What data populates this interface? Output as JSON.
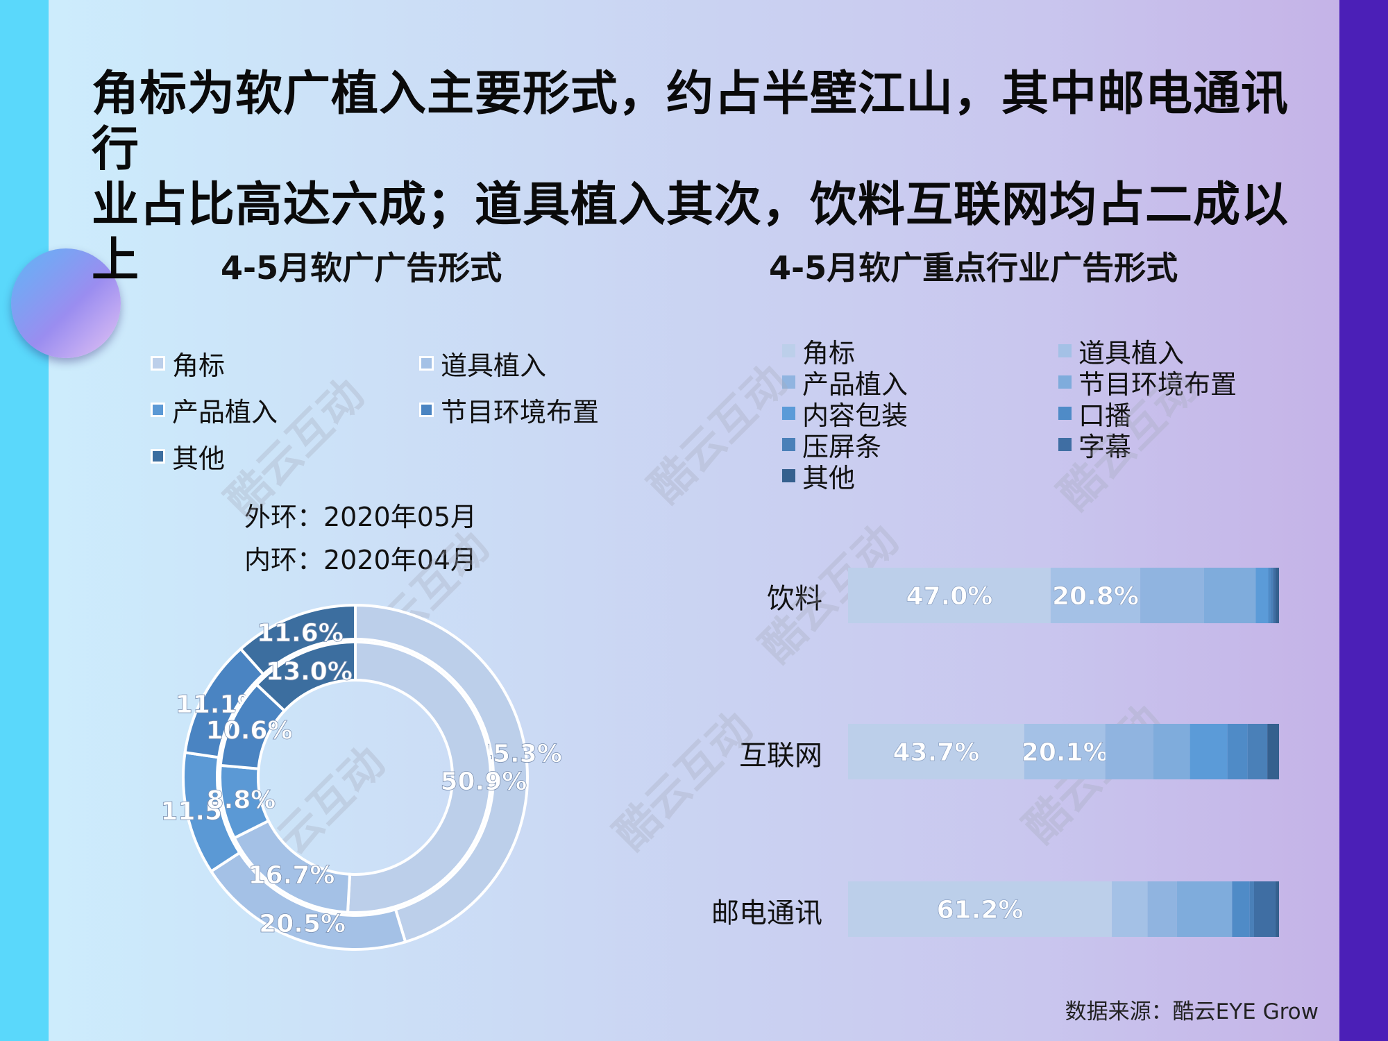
{
  "headline": {
    "line1": "角标为软广植入主要形式，约占半壁江山，其中邮电通讯行",
    "line2": "业占比高达六成；道具植入其次，饮料互联网均占二成以上"
  },
  "watermark": "酷云互动",
  "source": "数据来源：酷云EYE Grow",
  "colors": {
    "角标": "#bccfea",
    "道具植入": "#a4c1e6",
    "产品植入": "#90b4e0",
    "节目环境布置": "#7facdc",
    "内容包装": "#5b9bd8",
    "口播": "#4f8bc7",
    "压屏条": "#4a80b8",
    "字幕": "#3f6ea3",
    "其他": "#35608e",
    "donut_产品植入": "#5b99d5",
    "donut_节目环境布置": "#4a84c2",
    "donut_其他": "#3c6e9f"
  },
  "chart_data": [
    {
      "type": "pie",
      "subtype": "donut",
      "title": "4-5月软广广告形式",
      "legend": [
        "角标",
        "道具植入",
        "产品植入",
        "节目环境布置",
        "其他"
      ],
      "legend_placement": "top",
      "ring_labels": {
        "outer": "外环：2020年05月",
        "inner": "内环：2020年04月"
      },
      "series": [
        {
          "name": "2020年05月",
          "ring": "outer",
          "values": [
            45.3,
            20.5,
            11.5,
            11.1,
            11.6
          ],
          "labels": [
            "45.3%",
            "20.5%",
            "11.5%",
            "11.1%",
            "11.6%"
          ]
        },
        {
          "name": "2020年04月",
          "ring": "inner",
          "values": [
            50.9,
            16.7,
            8.8,
            10.6,
            13.0
          ],
          "labels": [
            "50.9%",
            "16.7%",
            "8.8%",
            "10.6%",
            "13.0%"
          ]
        }
      ]
    },
    {
      "type": "bar",
      "subtype": "stacked-100-horizontal",
      "title": "4-5月软广重点行业广告形式",
      "legend": [
        "角标",
        "道具植入",
        "产品植入",
        "节目环境布置",
        "内容包装",
        "口播",
        "压屏条",
        "字幕",
        "其他"
      ],
      "legend_placement": "top",
      "categories": [
        "饮料",
        "互联网",
        "邮电通讯"
      ],
      "series": [
        {
          "name": "角标",
          "values": [
            47.0,
            43.7,
            61.2
          ],
          "labels": [
            "47.0%",
            "43.7%",
            "61.2%"
          ]
        },
        {
          "name": "道具植入",
          "values": [
            20.8,
            20.1,
            8.3
          ],
          "labels": [
            "20.8%",
            "20.1%",
            ""
          ]
        },
        {
          "name": "产品植入",
          "values": [
            14.8,
            11.9,
            6.8
          ],
          "labels": [
            "",
            "",
            ""
          ]
        },
        {
          "name": "节目环境布置",
          "values": [
            12.0,
            9.1,
            12.8
          ],
          "labels": [
            "",
            "",
            ""
          ]
        },
        {
          "name": "内容包装",
          "values": [
            2.9,
            9.3,
            0.0
          ],
          "labels": [
            "",
            "",
            ""
          ]
        },
        {
          "name": "口播",
          "values": [
            0.5,
            5.0,
            4.1
          ],
          "labels": [
            "",
            "",
            ""
          ]
        },
        {
          "name": "压屏条",
          "values": [
            0.6,
            4.9,
            1.0
          ],
          "labels": [
            "",
            "",
            ""
          ]
        },
        {
          "name": "字幕",
          "values": [
            0.6,
            0.0,
            5.0
          ],
          "labels": [
            "",
            "",
            ""
          ]
        },
        {
          "name": "其他",
          "values": [
            0.8,
            2.9,
            0.8
          ],
          "labels": [
            "",
            "",
            ""
          ]
        }
      ]
    }
  ]
}
